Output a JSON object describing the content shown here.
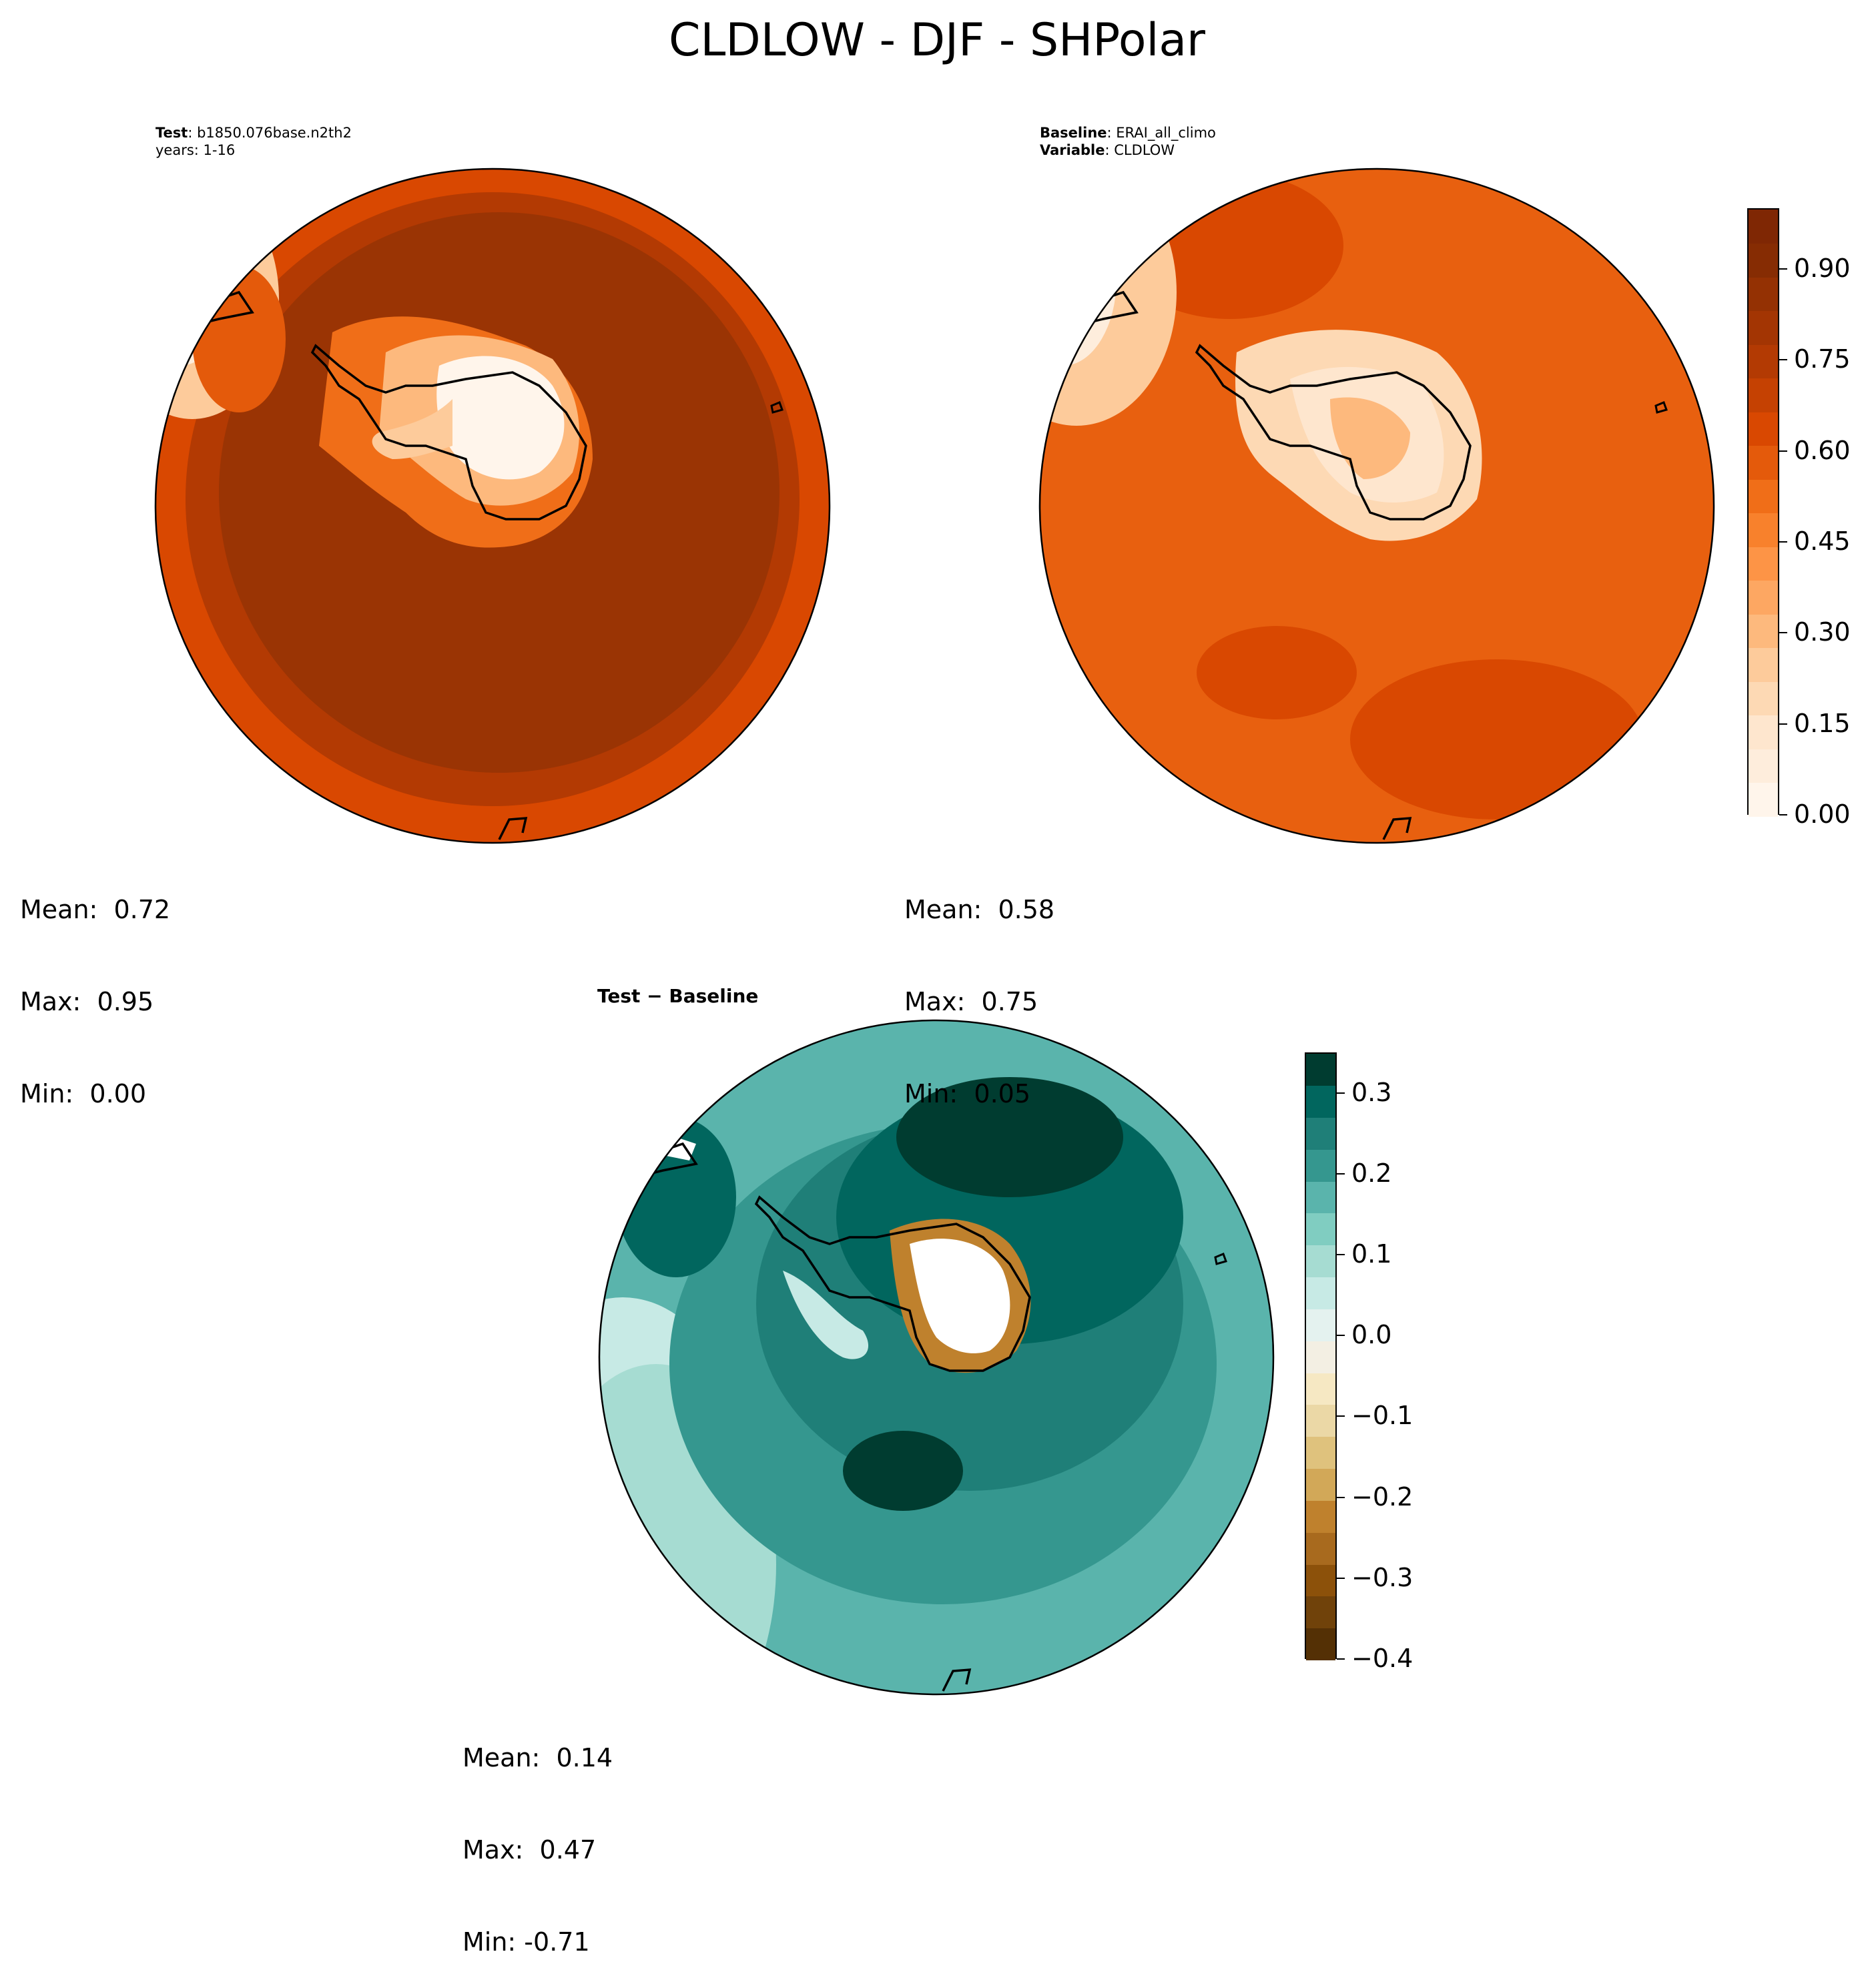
{
  "title": "CLDLOW - DJF - SHPolar",
  "test_panel": {
    "label_key": "Test",
    "label_value": "b1850.076base.n2th2",
    "years": "years: 1-16",
    "stats": {
      "mean": "Mean:  0.72",
      "max": "Max:  0.95",
      "min": "Min:  0.00"
    }
  },
  "baseline_panel": {
    "label_key": "Baseline",
    "label_value": "ERAI_all_climo",
    "variable_key": "Variable",
    "variable_value": "CLDLOW",
    "stats": {
      "mean": "Mean:  0.58",
      "max": "Max:  0.75",
      "min": "Min:  0.05"
    }
  },
  "diff_panel": {
    "label": "Test − Baseline",
    "stats": {
      "mean": "Mean:  0.14",
      "max": "Max:  0.47",
      "min": "Min: -0.71"
    }
  },
  "colorbars": {
    "main": {
      "ticks": [
        "0.00",
        "0.15",
        "0.30",
        "0.45",
        "0.60",
        "0.75",
        "0.90"
      ],
      "tick_values": [
        0.0,
        0.15,
        0.3,
        0.45,
        0.6,
        0.75,
        0.9
      ],
      "range": [
        0.0,
        1.0
      ],
      "colors": [
        "#fff5eb",
        "#feeddc",
        "#fee6ce",
        "#fdd9b4",
        "#fdcb9b",
        "#fdb97d",
        "#fda762",
        "#fd9446",
        "#f8812c",
        "#f06e18",
        "#e45a0b",
        "#d94801",
        "#c54102",
        "#b33a03",
        "#a33503",
        "#943103",
        "#862c03",
        "#7f2704"
      ]
    },
    "diff": {
      "ticks": [
        "0.3",
        "0.2",
        "0.1",
        "0.0",
        "−0.1",
        "−0.2",
        "−0.3",
        "−0.4"
      ],
      "tick_values": [
        0.3,
        0.2,
        0.1,
        0.0,
        -0.1,
        -0.2,
        -0.3,
        -0.4
      ],
      "range": [
        -0.4,
        0.35
      ],
      "colors": [
        "#543005",
        "#70420a",
        "#8c510a",
        "#a86a1e",
        "#bf812d",
        "#d2a858",
        "#dfc27d",
        "#ebd8a6",
        "#f6e8c3",
        "#f3efe3",
        "#e4f2ef",
        "#c7eae5",
        "#a6dcd2",
        "#80cdc1",
        "#5ab4ac",
        "#35978f",
        "#1f7f78",
        "#01665e",
        "#003c30"
      ]
    }
  },
  "map_colors": {
    "test_ocean": "#9a3404",
    "test_outer": "#c54102",
    "baseline_ocean": "#e8600f",
    "baseline_dark": "#d94801",
    "land_light": "#fff5eb",
    "diff_ocean": "#35978f",
    "diff_dark": "#01665e",
    "coast": "#000000"
  }
}
